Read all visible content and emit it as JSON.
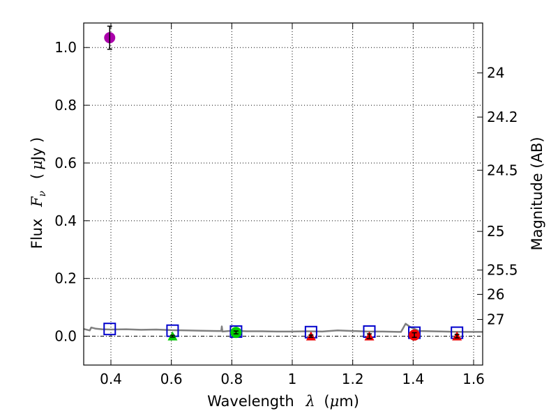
{
  "chart_data": {
    "type": "scatter",
    "xlabel_prefix": "Wavelength",
    "xlabel_symbol": "λ",
    "xlabel_unit_open": "(",
    "xlabel_unit_mu": "μ",
    "xlabel_unit_rest": "m)",
    "ylabel_prefix": "Flux",
    "ylabel_symbol": "F",
    "ylabel_subscript": "ν",
    "ylabel_unit_open": "(",
    "ylabel_unit_mu": "μ",
    "ylabel_unit_rest": "Jy )",
    "y2label": "Magnitude (AB)",
    "xlim": [
      0.31,
      1.63
    ],
    "ylim": [
      -0.1,
      1.085
    ],
    "grid": true,
    "x_ticks": [
      0.4,
      0.6,
      0.8,
      1.0,
      1.2,
      1.4,
      1.6
    ],
    "x_tick_labels": [
      "0.4",
      "0.6",
      "0.8",
      "1",
      "1.2",
      "1.4",
      "1.6"
    ],
    "y_ticks": [
      0.0,
      0.2,
      0.4,
      0.6,
      0.8,
      1.0
    ],
    "y_tick_labels": [
      "0.0",
      "0.2",
      "0.4",
      "0.6",
      "0.8",
      "1.0"
    ],
    "y2_ticks": [
      {
        "label": "24",
        "flux": 0.912
      },
      {
        "label": "24.2",
        "flux": 0.759
      },
      {
        "label": "24.5",
        "flux": 0.575
      },
      {
        "label": "25",
        "flux": 0.363
      },
      {
        "label": "25.5",
        "flux": 0.229
      },
      {
        "label": "26",
        "flux": 0.145
      },
      {
        "label": "27",
        "flux": 0.058
      }
    ],
    "zero_line": 0.0,
    "template_sed": {
      "color": "#808080",
      "x": [
        0.31,
        0.33,
        0.335,
        0.35,
        0.37,
        0.4,
        0.45,
        0.5,
        0.55,
        0.6,
        0.65,
        0.7,
        0.75,
        0.765,
        0.767,
        0.769,
        0.78,
        0.8,
        0.85,
        0.9,
        0.95,
        1.0,
        1.05,
        1.1,
        1.15,
        1.2,
        1.25,
        1.3,
        1.35,
        1.36,
        1.375,
        1.39,
        1.42,
        1.5,
        1.55,
        1.6,
        1.63
      ],
      "y": [
        0.025,
        0.02,
        0.03,
        0.026,
        0.024,
        0.023,
        0.024,
        0.022,
        0.023,
        0.021,
        0.02,
        0.019,
        0.018,
        0.018,
        0.034,
        0.016,
        0.017,
        0.019,
        0.017,
        0.017,
        0.016,
        0.016,
        0.017,
        0.016,
        0.02,
        0.018,
        0.016,
        0.016,
        0.015,
        0.015,
        0.043,
        0.032,
        0.018,
        0.016,
        0.015,
        0.015,
        0.015
      ]
    },
    "model_fluxes": {
      "marker": "open-square",
      "color": "#0000cc",
      "x": [
        0.396,
        0.604,
        0.814,
        1.062,
        1.255,
        1.404,
        1.545
      ],
      "y": [
        0.025,
        0.019,
        0.016,
        0.014,
        0.016,
        0.012,
        0.012
      ]
    },
    "observed_fluxes": [
      {
        "x": 0.396,
        "y": 1.034,
        "err": 0.04,
        "color": "#aa00aa",
        "marker": "circle"
      },
      {
        "x": 0.604,
        "y": 0.0,
        "err": 0.003,
        "color": "#00cc00",
        "marker": "triangle"
      },
      {
        "x": 0.814,
        "y": 0.013,
        "err": 0.005,
        "color": "#00cc00",
        "marker": "circle"
      },
      {
        "x": 1.062,
        "y": 0.0,
        "err": 0.004,
        "color": "#ee0000",
        "marker": "triangle"
      },
      {
        "x": 1.255,
        "y": 0.0,
        "err": 0.008,
        "color": "#ee0000",
        "marker": "triangle"
      },
      {
        "x": 1.404,
        "y": 0.004,
        "err": 0.008,
        "color": "#ee0000",
        "marker": "circle"
      },
      {
        "x": 1.545,
        "y": 0.0,
        "err": 0.006,
        "color": "#ee0000",
        "marker": "triangle"
      }
    ]
  }
}
